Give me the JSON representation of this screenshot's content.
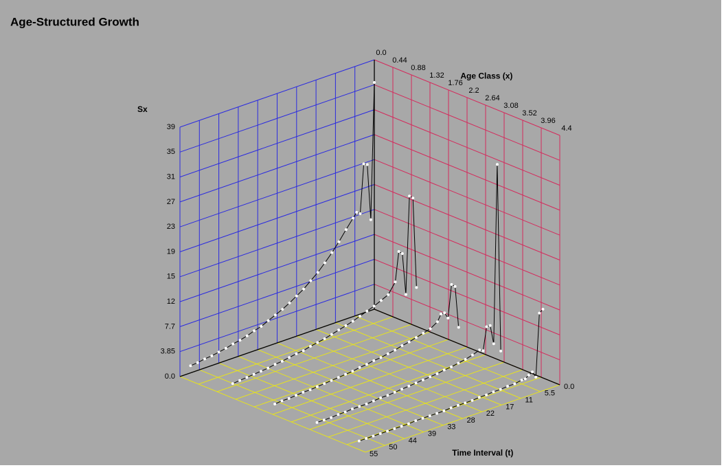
{
  "chart_data": {
    "type": "line3d",
    "title": "Age-Structured Growth",
    "y_label": "Sx",
    "age_label": "Age Class (x)",
    "x_label": "Time Interval (t)",
    "ylim": [
      0,
      38.5
    ],
    "yticks": [
      {
        "value": 0,
        "label": "0.0"
      },
      3.85,
      7.7,
      {
        "value": 11.55,
        "label": "12"
      },
      {
        "value": 15.4,
        "label": "15"
      },
      {
        "value": 19.25,
        "label": "19"
      },
      {
        "value": 23.1,
        "label": "23"
      },
      {
        "value": 26.95,
        "label": "27"
      },
      {
        "value": 30.8,
        "label": "31"
      },
      {
        "value": 34.65,
        "label": "35"
      },
      {
        "value": 38.5,
        "label": "39"
      }
    ],
    "age_lim": [
      0,
      4.4
    ],
    "age_ticks": [
      {
        "value": 0,
        "label": "0.0"
      },
      0.44,
      0.88,
      1.32,
      1.76,
      2.2,
      2.64,
      3.08,
      3.52,
      3.96,
      4.4
    ],
    "xlim": [
      0,
      55
    ],
    "xticks": [
      {
        "value": 0,
        "label": "0.0"
      },
      5.5,
      11,
      {
        "value": 16.5,
        "label": "17"
      },
      22,
      {
        "value": 27.5,
        "label": "28"
      },
      33,
      {
        "value": 38.5,
        "label": "39"
      },
      44,
      {
        "value": 49.5,
        "label": "50"
      },
      55
    ],
    "left_wall_color": "#2a2ae0",
    "right_wall_color": "#d42a5c",
    "floor_color": "#e6e21e",
    "line_color": "#000000",
    "marker_color": "#ffffff",
    "x": [
      0,
      1,
      2,
      3,
      4,
      5,
      6,
      8,
      10,
      12,
      14,
      16,
      18,
      20,
      22,
      24,
      26,
      28,
      30,
      32,
      34,
      36,
      38,
      40,
      42,
      44,
      46,
      48,
      50,
      52
    ],
    "series": [
      {
        "age": 0,
        "values": [
          35,
          14,
          22.7,
          23,
          15.5,
          15.9,
          15.2,
          13.8,
          12.3,
          11.0,
          9.8,
          8.7,
          7.8,
          6.9,
          6.2,
          5.5,
          4.9,
          4.4,
          3.9,
          3.4,
          3.1,
          2.7,
          2.4,
          2.2,
          1.9,
          1.7,
          1.5,
          1.4,
          1.2,
          1.1
        ]
      },
      {
        "age": 1,
        "values": [
          6,
          20,
          20.5,
          5.5,
          12,
          12.5,
          8,
          6.4,
          5.9,
          5.4,
          5.0,
          4.6,
          4.2,
          3.9,
          3.6,
          3.3,
          3.0,
          2.8,
          2.6,
          2.3,
          2.2,
          2.0,
          1.8,
          1.7,
          1.5,
          1.4,
          1.3,
          1.2,
          1.1,
          1.0
        ]
      },
      {
        "age": 2,
        "values": [
          2.5,
          9,
          9.5,
          4.5,
          5.5,
          5.5,
          4.5,
          3.8,
          3.5,
          3.2,
          2.9,
          2.7,
          2.4,
          2.2,
          2.0,
          1.9,
          1.7,
          1.6,
          1.4,
          1.3,
          1.2,
          1.1,
          1.0,
          0.9,
          0.8,
          0.8,
          0.7,
          0.6,
          0.6,
          0.5
        ]
      },
      {
        "age": 3,
        "values": [
          1.5,
          30.5,
          3,
          6,
          6,
          2.5,
          2.8,
          2.4,
          2.1,
          1.9,
          1.7,
          1.6,
          1.4,
          1.3,
          1.2,
          1.1,
          1.0,
          0.9,
          0.8,
          0.7,
          0.7,
          0.6,
          0.5,
          0.5,
          0.5,
          0.4,
          0.4,
          0.3,
          0.3,
          0.3
        ]
      },
      {
        "age": 4,
        "values": [
          10.6,
          10.2,
          0.5,
          1.5,
          1.2,
          0.8,
          0.8,
          0.6,
          0.6,
          0.5,
          0.5,
          0.4,
          0.4,
          0.3,
          0.3,
          0.3,
          0.3,
          0.2,
          0.2,
          0.2,
          0.2,
          0.2,
          0.1,
          0.1,
          0.1,
          0.1,
          0.1,
          0.1,
          0.1,
          0.1
        ]
      }
    ]
  }
}
